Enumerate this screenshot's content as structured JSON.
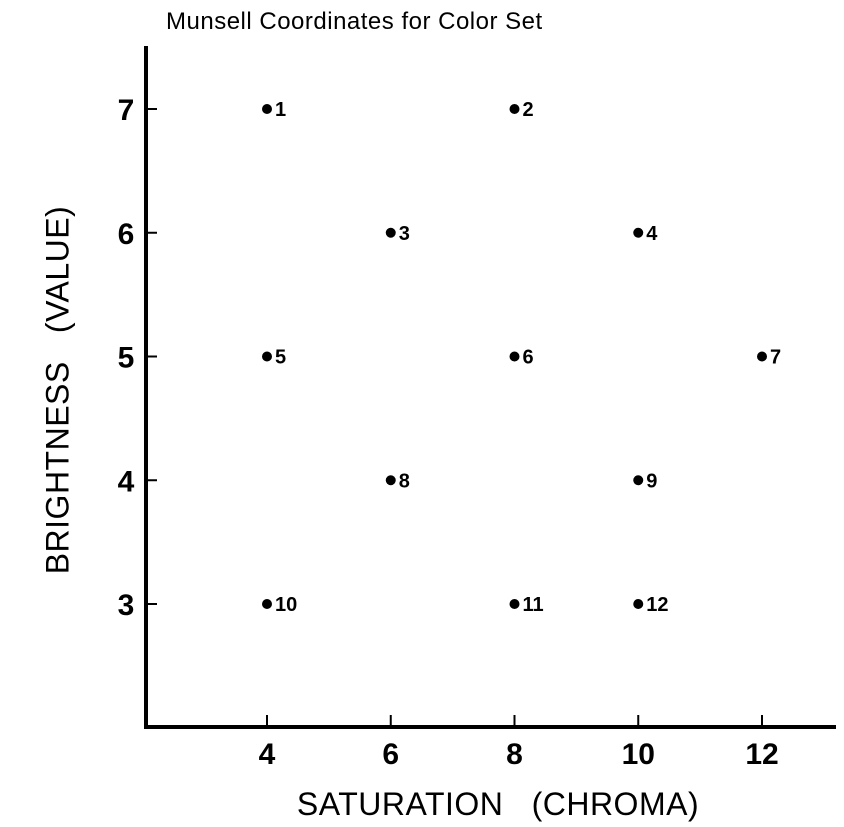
{
  "chart_data": {
    "type": "scatter",
    "title": "Munsell Coordinates for Color Set",
    "xlabel": "SATURATION   (CHROMA)",
    "ylabel": "BRIGHTNESS   (VALUE)",
    "x_ticks": [
      4,
      6,
      8,
      10,
      12
    ],
    "y_ticks": [
      3,
      4,
      5,
      6,
      7
    ],
    "xlim": [
      2.1,
      13.2
    ],
    "ylim": [
      2.0,
      7.5
    ],
    "grid": false,
    "legend": null,
    "points": [
      {
        "label": "1",
        "x": 4,
        "y": 7
      },
      {
        "label": "2",
        "x": 8,
        "y": 7
      },
      {
        "label": "3",
        "x": 6,
        "y": 6
      },
      {
        "label": "4",
        "x": 10,
        "y": 6
      },
      {
        "label": "5",
        "x": 4,
        "y": 5
      },
      {
        "label": "6",
        "x": 8,
        "y": 5
      },
      {
        "label": "7",
        "x": 12,
        "y": 5
      },
      {
        "label": "8",
        "x": 6,
        "y": 4
      },
      {
        "label": "9",
        "x": 10,
        "y": 4
      },
      {
        "label": "10",
        "x": 4,
        "y": 3
      },
      {
        "label": "11",
        "x": 8,
        "y": 3
      },
      {
        "label": "12",
        "x": 10,
        "y": 3
      }
    ]
  },
  "colors": {
    "ink": "#000000",
    "background": "#ffffff"
  }
}
